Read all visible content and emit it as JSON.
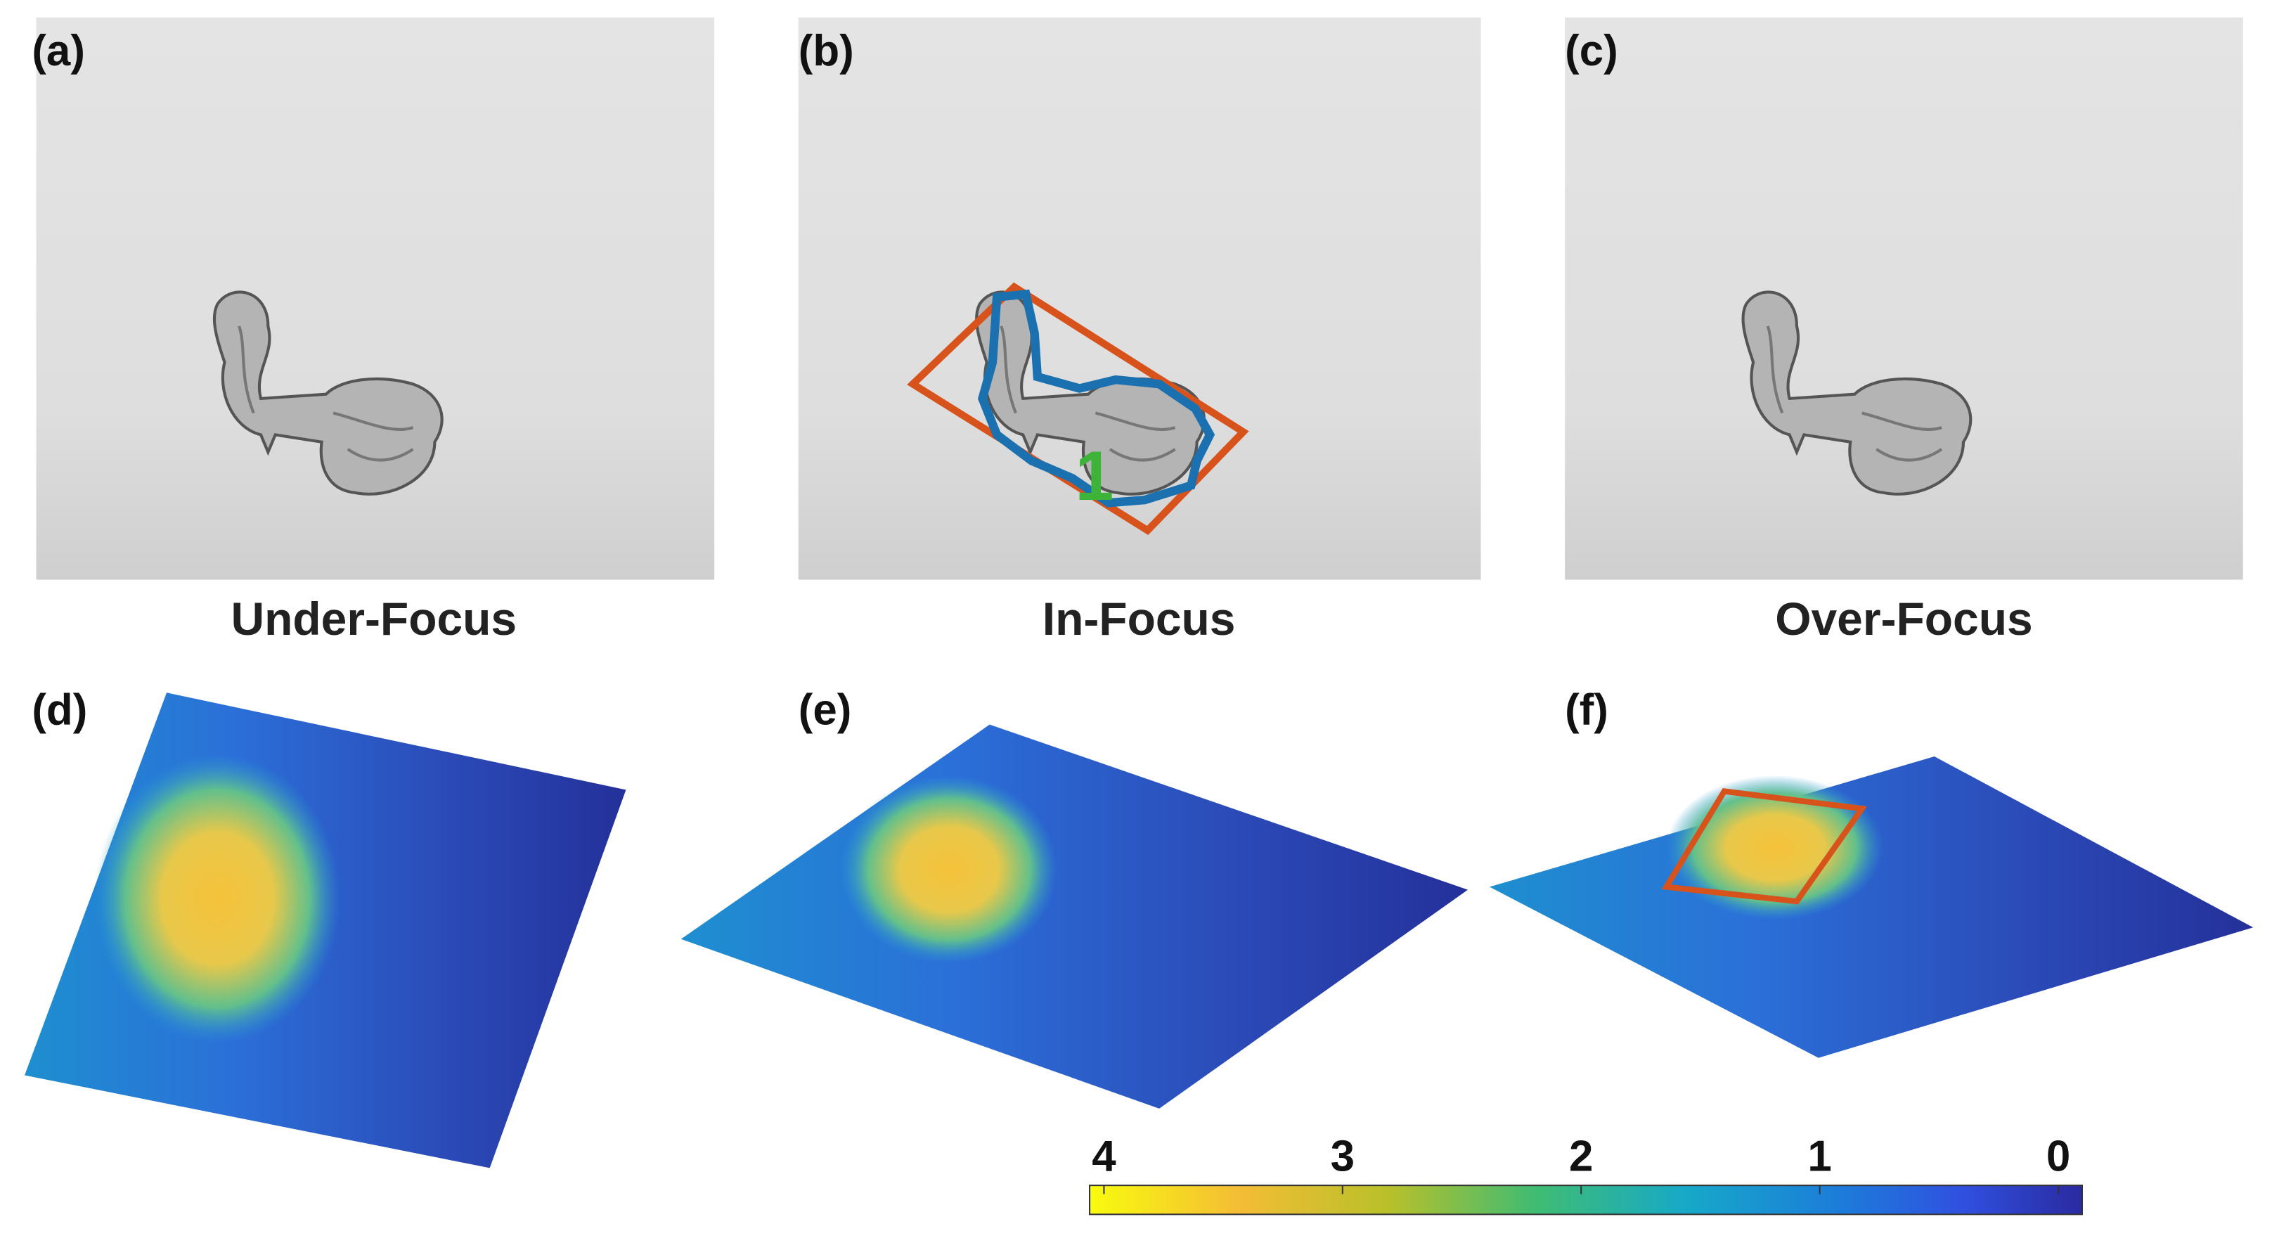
{
  "panels": [
    {
      "label": "(a)",
      "caption": "Under-Focus"
    },
    {
      "label": "(b)",
      "caption": "In-Focus",
      "annotation": "1"
    },
    {
      "label": "(c)",
      "caption": "Over-Focus"
    },
    {
      "label": "(d)"
    },
    {
      "label": "(e)"
    },
    {
      "label": "(f)"
    }
  ],
  "colorbar": {
    "lim": [
      4.06,
      -0.1
    ],
    "ticks": [
      4,
      3,
      2,
      1,
      0
    ]
  }
}
